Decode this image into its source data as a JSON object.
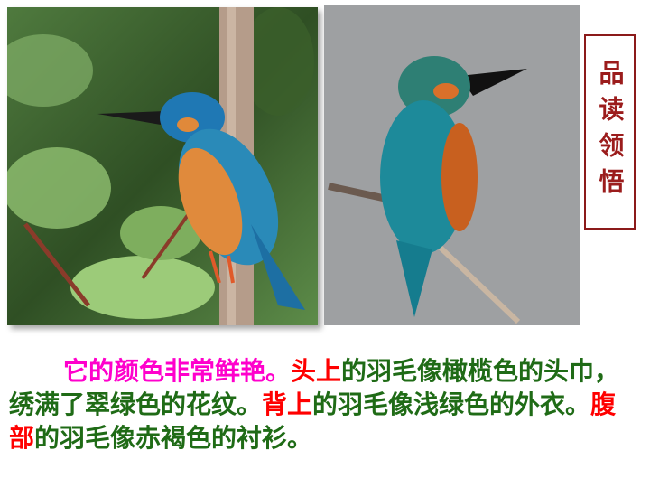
{
  "side_label": "品读领悟",
  "caption": {
    "intro": "它的颜色非常鲜艳。",
    "head_term": "头上",
    "head_desc": "的羽毛像橄榄色的头巾，绣满了翠绿色的花纹。",
    "back_term": "背上",
    "back_desc": "的羽毛像浅绿色的外衣。",
    "belly_term": "腹部",
    "belly_desc": "的羽毛像赤褐色的衬衫。"
  },
  "colors": {
    "intro": "#ff00cc",
    "terms": "#ff0000",
    "body_text": "#1f6b16",
    "label_border": "#8b1a1a"
  },
  "images": {
    "left": "kingfisher-photo-on-branch",
    "right": "kingfisher-photo-gray-background"
  }
}
